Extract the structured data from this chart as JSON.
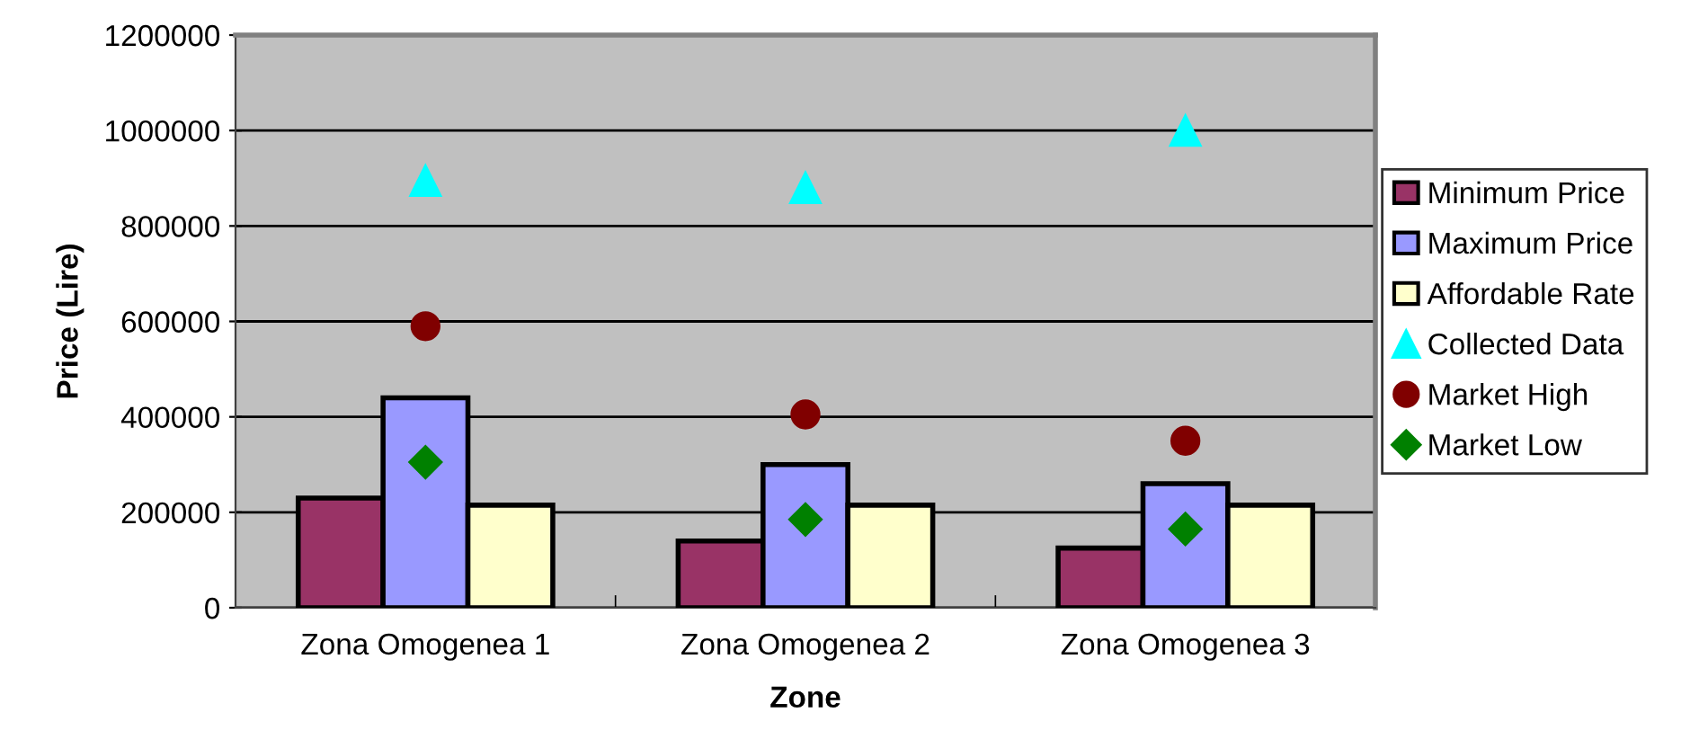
{
  "chart_data": {
    "type": "bar",
    "xlabel": "Zone",
    "ylabel": "Price (Lire)",
    "categories": [
      "Zona Omogenea 1",
      "Zona Omogenea 2",
      "Zona Omogenea 3"
    ],
    "series": [
      {
        "name": "Minimum Price",
        "color": "#993366",
        "values": [
          230000,
          140000,
          125000
        ]
      },
      {
        "name": "Maximum Price",
        "color": "#9999ff",
        "values": [
          440000,
          300000,
          260000
        ]
      },
      {
        "name": "Affordable Rate",
        "color": "#ffffcc",
        "values": [
          215000,
          215000,
          215000
        ]
      },
      {
        "name": "Collected Data",
        "type": "scatter",
        "marker": "triangle",
        "color": "#00ffff",
        "x": [
          "Zona Omogenea 1",
          "Zona Omogenea 2",
          "Zona Omogenea 3"
        ],
        "values": [
          895000,
          880000,
          1000000
        ]
      },
      {
        "name": "Market High",
        "type": "scatter",
        "marker": "circle",
        "color": "#800000",
        "x": [
          "Zona Omogenea 1",
          "Zona Omogenea 2",
          "Zona Omogenea 3"
        ],
        "values": [
          590000,
          405000,
          350000
        ]
      },
      {
        "name": "Market Low",
        "type": "scatter",
        "marker": "diamond",
        "color": "#008000",
        "x": [
          "Zona Omogenea 1",
          "Zona Omogenea 2",
          "Zona Omogenea 3"
        ],
        "values": [
          305000,
          185000,
          165000
        ]
      }
    ],
    "ylim": [
      0,
      1200000
    ],
    "yticks": [
      0,
      200000,
      400000,
      600000,
      800000,
      1000000,
      1200000
    ],
    "grid": "y",
    "legend": "right"
  }
}
